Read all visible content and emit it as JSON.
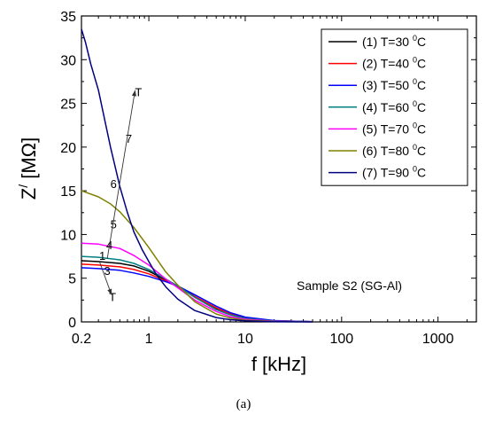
{
  "chart_data": {
    "type": "line",
    "xscale": "log",
    "xlim": [
      0.2,
      2500
    ],
    "ylim": [
      0,
      35
    ],
    "xlabel": "f [kHz]",
    "ylabel_main": "Z",
    "ylabel_sup": "/",
    "ylabel_unit": " [MΩ]",
    "xticks": [
      {
        "value": 0.2,
        "label": "0.2"
      },
      {
        "value": 1,
        "label": "1"
      },
      {
        "value": 10,
        "label": "10"
      },
      {
        "value": 100,
        "label": "100"
      },
      {
        "value": 1000,
        "label": "1000"
      }
    ],
    "yticks": [
      {
        "value": 0,
        "label": "0"
      },
      {
        "value": 5,
        "label": "5"
      },
      {
        "value": 10,
        "label": "10"
      },
      {
        "value": 15,
        "label": "15"
      },
      {
        "value": 20,
        "label": "20"
      },
      {
        "value": 25,
        "label": "25"
      },
      {
        "value": 30,
        "label": "30"
      },
      {
        "value": 35,
        "label": "35"
      }
    ],
    "legend_position": "top-right",
    "series": [
      {
        "name": "(1) T=30",
        "color": "#000000",
        "x": [
          0.2,
          0.3,
          0.5,
          0.7,
          1,
          1.5,
          2,
          3,
          5,
          7,
          10,
          20,
          50
        ],
        "y": [
          7.0,
          6.9,
          6.7,
          6.4,
          5.8,
          4.8,
          4.1,
          2.9,
          1.5,
          0.85,
          0.45,
          0.12,
          0.02
        ]
      },
      {
        "name": "(2) T=40",
        "color": "#ff0000",
        "x": [
          0.2,
          0.3,
          0.5,
          0.7,
          1,
          1.5,
          2,
          3,
          5,
          7,
          10,
          20,
          50
        ],
        "y": [
          6.6,
          6.5,
          6.3,
          6.0,
          5.5,
          4.7,
          4.0,
          2.9,
          1.6,
          0.9,
          0.5,
          0.13,
          0.02
        ]
      },
      {
        "name": "(3) T=50",
        "color": "#0000ff",
        "x": [
          0.2,
          0.3,
          0.5,
          0.7,
          1,
          1.5,
          2,
          3,
          5,
          7,
          10,
          20,
          50
        ],
        "y": [
          6.2,
          6.1,
          5.9,
          5.6,
          5.2,
          4.6,
          4.1,
          3.1,
          1.8,
          1.05,
          0.55,
          0.15,
          0.02
        ]
      },
      {
        "name": "(4) T=60",
        "color": "#008080",
        "x": [
          0.2,
          0.3,
          0.5,
          0.7,
          1,
          1.5,
          2,
          3,
          5,
          7,
          10,
          20,
          50
        ],
        "y": [
          7.5,
          7.4,
          7.1,
          6.7,
          6.0,
          4.9,
          4.1,
          2.8,
          1.4,
          0.8,
          0.4,
          0.1,
          0.02
        ]
      },
      {
        "name": "(5) T=70",
        "color": "#ff00ff",
        "x": [
          0.2,
          0.3,
          0.5,
          0.7,
          1,
          1.5,
          2,
          3,
          5,
          7,
          10,
          20,
          50
        ],
        "y": [
          9.0,
          8.9,
          8.4,
          7.6,
          6.5,
          4.9,
          3.9,
          2.5,
          1.2,
          0.6,
          0.3,
          0.08,
          0.01
        ]
      },
      {
        "name": "(6) T=80",
        "color": "#808000",
        "x": [
          0.2,
          0.3,
          0.4,
          0.5,
          0.7,
          1,
          1.5,
          2,
          3,
          5,
          7,
          10,
          20,
          50
        ],
        "y": [
          15.0,
          14.3,
          13.5,
          12.6,
          10.8,
          8.5,
          5.7,
          4.2,
          2.3,
          0.9,
          0.45,
          0.2,
          0.05,
          0.01
        ]
      },
      {
        "name": "(7) T=90",
        "color": "#000080",
        "x": [
          0.2,
          0.22,
          0.25,
          0.3,
          0.35,
          0.4,
          0.5,
          0.6,
          0.7,
          0.85,
          1,
          1.2,
          1.5,
          2,
          3,
          5,
          7,
          10,
          20,
          50
        ],
        "y": [
          33.5,
          32.0,
          29.5,
          26.5,
          23.0,
          20.0,
          15.5,
          12.5,
          10.3,
          8.3,
          6.9,
          5.4,
          4.0,
          2.6,
          1.3,
          0.5,
          0.25,
          0.12,
          0.03,
          0.0
        ]
      }
    ],
    "legend_unit_sup": "0",
    "legend_unit": "C",
    "annotations": [
      {
        "text": "7",
        "x": 0.62,
        "y": 20.5
      },
      {
        "text": "6",
        "x": 0.43,
        "y": 15.3
      },
      {
        "text": "5",
        "x": 0.43,
        "y": 10.7
      },
      {
        "text": "4",
        "x": 0.39,
        "y": 8.3
      },
      {
        "text": "1",
        "x": 0.33,
        "y": 7.1
      },
      {
        "text": "3",
        "x": 0.37,
        "y": 5.4
      },
      {
        "text": "T",
        "x": 0.78,
        "y": 25.8
      },
      {
        "text": "T",
        "x": 0.42,
        "y": 2.4
      }
    ],
    "arrows": [
      {
        "from": [
          0.37,
          7.2
        ],
        "to": [
          0.72,
          26.5
        ]
      },
      {
        "from": [
          0.31,
          6.8
        ],
        "to": [
          0.41,
          3.1
        ]
      }
    ],
    "sample_label": "Sample S2 (SG-Al)"
  },
  "caption": "(a)"
}
